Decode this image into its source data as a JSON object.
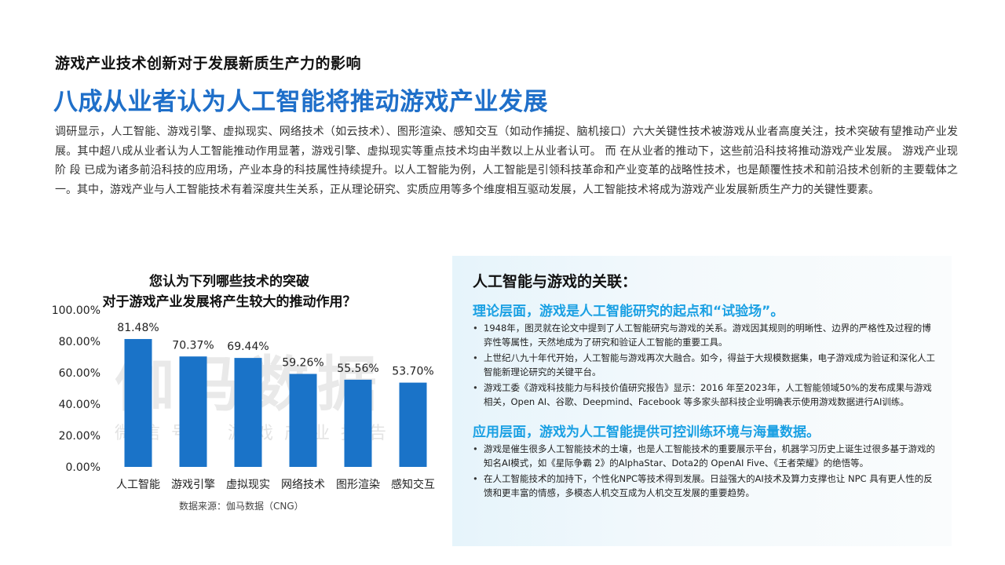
{
  "header": {
    "kicker": "游戏产业技术创新对于发展新质生产力的影响",
    "headline": "八成从业者认为人工智能将推动游戏产业发展",
    "intro": "调研显示，人工智能、游戏引擎、虚拟现实、网络技术（如云技术）、图形渲染、感知交互（如动作捕捉、脑机接口）六大关键性技术被游戏从业者高度关注，技术突破有望推动产业发展。其中超八成从业者认为人工智能推动作用显著，游戏引擎、虚拟现实等重点技术均由半数以上从业者认可。 而 在从业者的推动下，这些前沿科技将推动游戏产业发展。 游戏产业现 阶 段 已成为诸多前沿科技的应用场，产业本身的科技属性持续提升。以人工智能为例，人工智能是引领科技革命和产业变革的战略性技术，也是颠覆性技术和前沿技术创新的主要载体之一。其中，游戏产业与人工智能技术有着深度共生关系，正从理论研究、实质应用等多个维度相互驱动发展，人工智能技术将成为游戏产业发展新质生产力的关键性要素。"
  },
  "watermark": {
    "big": "伽马数据",
    "small": "微信号：游戏产业报告"
  },
  "chart_data": {
    "type": "bar",
    "title_lines": [
      "您认为下列哪些技术的突破",
      "对于游戏产业发展将产生较大的推动作用？"
    ],
    "categories": [
      "人工智能",
      "游戏引擎",
      "虚拟现实",
      "网络技术",
      "图形渲染",
      "感知交互"
    ],
    "values": [
      81.48,
      70.37,
      69.44,
      59.26,
      55.56,
      53.7
    ],
    "value_labels": [
      "81.48%",
      "70.37%",
      "69.44%",
      "59.26%",
      "55.56%",
      "53.70%"
    ],
    "y_ticks": [
      "0.00%",
      "20.00%",
      "40.00%",
      "60.00%",
      "80.00%",
      "100.00%"
    ],
    "ylim": [
      0,
      100
    ],
    "xlabel": "",
    "ylabel": "",
    "grid": false,
    "bar_color": "#1a73c8"
  },
  "source": "数据来源：伽马数据（CNG）",
  "panel": {
    "title": "人工智能与游戏的关联：",
    "sections": [
      {
        "heading": "理论层面，游戏是人工智能研究的起点和“试验场”。",
        "bullets": [
          "1948年，图灵就在论文中提到了人工智能研究与游戏的关系。游戏因其规则的明晰性、边界的严格性及过程的博弈性等属性，天然地成为了研究和验证人工智能的重要工具。",
          "上世纪八九十年代开始，人工智能与游戏再次大融合。如今，得益于大规模数据集，电子游戏成为验证和深化人工智能新理论研究的关键平台。",
          "游戏工委《游戏科技能力与科技价值研究报告》显示：2016 年至2023年，人工智能领域50%的发布成果与游戏相关，Open AI、谷歌、Deepmind、Facebook 等多家头部科技企业明确表示使用游戏数据进行AI训练。"
        ]
      },
      {
        "heading": "应用层面，游戏为人工智能提供可控训练环境与海量数据。",
        "bullets": [
          "游戏是催生很多人工智能技术的土壤，也是人工智能技术的重要展示平台，机器学习历史上诞生过很多基于游戏的知名AI模式，如《星际争霸 2》的AlphaStar、Dota2的 OpenAI Five、《王者荣耀》的绝悟等。",
          "在人工智能技术的加持下，个性化NPC等技术得到发展。日益强大的AI技术及算力支撑也让 NPC 具有更人性的反馈和更丰富的情感，多模态人机交互成为人机交互发展的重要趋势。"
        ]
      }
    ]
  }
}
